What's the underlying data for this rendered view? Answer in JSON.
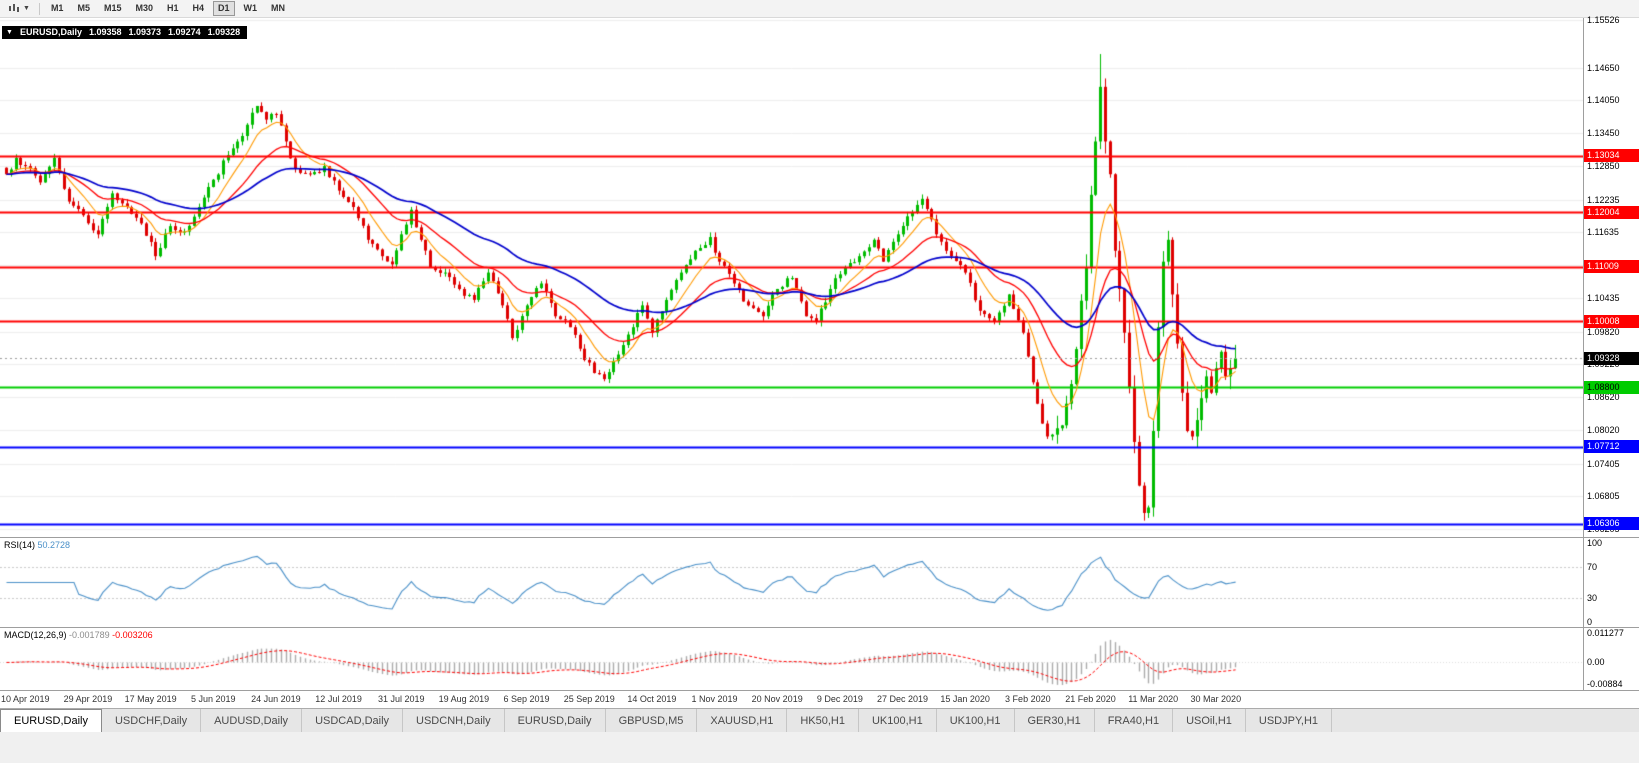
{
  "toolbar": {
    "timeframes": [
      {
        "label": "M1",
        "active": false
      },
      {
        "label": "M5",
        "active": false
      },
      {
        "label": "M15",
        "active": false
      },
      {
        "label": "M30",
        "active": false
      },
      {
        "label": "H1",
        "active": false
      },
      {
        "label": "H4",
        "active": false
      },
      {
        "label": "D1",
        "active": true
      },
      {
        "label": "W1",
        "active": false
      },
      {
        "label": "MN",
        "active": false
      }
    ]
  },
  "chart": {
    "header": {
      "symbol": "EURUSD,Daily",
      "open": "1.09358",
      "high": "1.09373",
      "low": "1.09274",
      "close": "1.09328"
    },
    "price_axis_ticks": [
      "1.15526",
      "1.14650",
      "1.14050",
      "1.13450",
      "1.12850",
      "1.12235",
      "1.11635",
      "1.11035",
      "1.10435",
      "1.09820",
      "1.09220",
      "1.08620",
      "1.08020",
      "1.07405",
      "1.06805",
      "1.06205"
    ],
    "levels": [
      {
        "price": 1.13034,
        "label": "1.13034",
        "color": "#FF0000",
        "text": "#FFFFFF"
      },
      {
        "price": 1.12004,
        "label": "1.12004",
        "color": "#FF0000",
        "text": "#FFFFFF"
      },
      {
        "price": 1.11009,
        "label": "1.11009",
        "color": "#FF0000",
        "text": "#FFFFFF"
      },
      {
        "price": 1.10008,
        "label": "1.10008",
        "color": "#FF0000",
        "text": "#FFFFFF"
      },
      {
        "price": 1.088,
        "label": "1.08800",
        "color": "#00CC00",
        "text": "#000000"
      },
      {
        "price": 1.07712,
        "label": "1.07712",
        "color": "#0000FF",
        "text": "#FFFFFF"
      },
      {
        "price": 1.06306,
        "label": "1.06306",
        "color": "#0000FF",
        "text": "#FFFFFF"
      }
    ],
    "current_price": {
      "value": 1.09328,
      "label": "1.09328"
    },
    "colors": {
      "bull": "#00BB00",
      "bear": "#DE0000",
      "background": "#FFFFFF",
      "grid": "#EDEDED",
      "bid_line": "#9C9C9C"
    },
    "chart_data": {
      "type": "candlestick",
      "symbol": "EURUSD",
      "timeframe": "Daily",
      "price_range_top": 1.1556,
      "price_range_bottom": 1.0606,
      "bars": 256,
      "seed": 7,
      "base_noise": 0.0016,
      "volatile_noise": 0.0045,
      "volatile_from_bar": 218,
      "spike_high": {
        "bar": 227,
        "high": 1.149
      },
      "crash_low": {
        "bar": 236,
        "low": 1.0636
      },
      "close_waypoints": [
        [
          0,
          1.127
        ],
        [
          2,
          1.13
        ],
        [
          4,
          1.1285
        ],
        [
          7,
          1.1255
        ],
        [
          10,
          1.13
        ],
        [
          13,
          1.122
        ],
        [
          16,
          1.1195
        ],
        [
          19,
          1.116
        ],
        [
          22,
          1.1235
        ],
        [
          25,
          1.121
        ],
        [
          28,
          1.118
        ],
        [
          31,
          1.112
        ],
        [
          34,
          1.1175
        ],
        [
          37,
          1.1165
        ],
        [
          40,
          1.121
        ],
        [
          43,
          1.126
        ],
        [
          46,
          1.1305
        ],
        [
          49,
          1.134
        ],
        [
          52,
          1.1395
        ],
        [
          54,
          1.137
        ],
        [
          56,
          1.138
        ],
        [
          58,
          1.133
        ],
        [
          60,
          1.128
        ],
        [
          63,
          1.127
        ],
        [
          66,
          1.1285
        ],
        [
          69,
          1.124
        ],
        [
          72,
          1.121
        ],
        [
          75,
          1.115
        ],
        [
          78,
          1.112
        ],
        [
          80,
          1.1105
        ],
        [
          82,
          1.116
        ],
        [
          84,
          1.1205
        ],
        [
          86,
          1.115
        ],
        [
          88,
          1.11
        ],
        [
          91,
          1.109
        ],
        [
          94,
          1.106
        ],
        [
          97,
          1.104
        ],
        [
          100,
          1.109
        ],
        [
          103,
          1.103
        ],
        [
          105,
          1.097
        ],
        [
          108,
          1.103
        ],
        [
          111,
          1.107
        ],
        [
          114,
          1.101
        ],
        [
          117,
          1.099
        ],
        [
          120,
          1.093
        ],
        [
          124,
          1.0895
        ],
        [
          127,
          1.094
        ],
        [
          130,
          1.099
        ],
        [
          132,
          1.103
        ],
        [
          134,
          1.098
        ],
        [
          137,
          1.104
        ],
        [
          140,
          1.109
        ],
        [
          143,
          1.113
        ],
        [
          146,
          1.1155
        ],
        [
          148,
          1.111
        ],
        [
          151,
          1.107
        ],
        [
          154,
          1.103
        ],
        [
          157,
          1.101
        ],
        [
          160,
          1.106
        ],
        [
          163,
          1.108
        ],
        [
          166,
          1.101
        ],
        [
          168,
          1.1
        ],
        [
          171,
          1.106
        ],
        [
          174,
          1.11
        ],
        [
          177,
          1.112
        ],
        [
          180,
          1.115
        ],
        [
          182,
          1.111
        ],
        [
          185,
          1.116
        ],
        [
          188,
          1.12
        ],
        [
          190,
          1.1225
        ],
        [
          193,
          1.116
        ],
        [
          196,
          1.112
        ],
        [
          199,
          1.109
        ],
        [
          202,
          1.102
        ],
        [
          205,
          1.1
        ],
        [
          208,
          1.105
        ],
        [
          211,
          1.098
        ],
        [
          214,
          1.085
        ],
        [
          216,
          1.079
        ],
        [
          218,
          1.0805
        ],
        [
          220,
          1.085
        ],
        [
          222,
          1.095
        ],
        [
          224,
          1.11
        ],
        [
          226,
          1.133
        ],
        [
          227,
          1.143
        ],
        [
          228,
          1.133
        ],
        [
          229,
          1.127
        ],
        [
          230,
          1.113
        ],
        [
          231,
          1.106
        ],
        [
          232,
          1.098
        ],
        [
          233,
          1.088
        ],
        [
          234,
          1.078
        ],
        [
          235,
          1.07
        ],
        [
          236,
          1.065
        ],
        [
          237,
          1.066
        ],
        [
          238,
          1.08
        ],
        [
          239,
          1.099
        ],
        [
          240,
          1.111
        ],
        [
          241,
          1.115
        ],
        [
          242,
          1.105
        ],
        [
          243,
          1.096
        ],
        [
          244,
          1.087
        ],
        [
          245,
          1.08
        ],
        [
          246,
          1.079
        ],
        [
          247,
          1.082
        ],
        [
          248,
          1.086
        ],
        [
          249,
          1.09
        ],
        [
          250,
          1.087
        ],
        [
          251,
          1.0915
        ],
        [
          252,
          1.0945
        ],
        [
          253,
          1.09
        ],
        [
          254,
          1.0915
        ],
        [
          255,
          1.0933
        ]
      ],
      "moving_averages": [
        {
          "period": 8,
          "color": "#FF9900"
        },
        {
          "period": 20,
          "color": "#FF0000"
        },
        {
          "period": 45,
          "color": "#0000CC"
        }
      ]
    }
  },
  "rsi": {
    "title": "RSI(14)",
    "value": "50.2728",
    "period": 14,
    "axis_ticks": [
      "100",
      "70",
      "30",
      "0"
    ],
    "levels": [
      70,
      30
    ],
    "color": "#4A90C8",
    "range": [
      0,
      100
    ]
  },
  "macd": {
    "title": "MACD(12,26,9)",
    "macd_value": "-0.001789",
    "signal_value": "-0.003206",
    "fast": 12,
    "slow": 26,
    "signal": 9,
    "axis_ticks": [
      "0.011277",
      "0.00",
      "-0.00884"
    ],
    "hist_color": "#ABABAB",
    "signal_color": "#FF0000",
    "range": [
      0.0113,
      -0.0089
    ]
  },
  "date_axis": {
    "labels": [
      "10 Apr 2019",
      "29 Apr 2019",
      "17 May 2019",
      "5 Jun 2019",
      "24 Jun 2019",
      "12 Jul 2019",
      "31 Jul 2019",
      "19 Aug 2019",
      "6 Sep 2019",
      "25 Sep 2019",
      "14 Oct 2019",
      "1 Nov 2019",
      "20 Nov 2019",
      "9 Dec 2019",
      "27 Dec 2019",
      "15 Jan 2020",
      "3 Feb 2020",
      "21 Feb 2020",
      "11 Mar 2020",
      "30 Mar 2020"
    ]
  },
  "tabs": [
    {
      "label": "EURUSD,Daily",
      "active": true
    },
    {
      "label": "USDCHF,Daily",
      "active": false
    },
    {
      "label": "AUDUSD,Daily",
      "active": false
    },
    {
      "label": "USDCAD,Daily",
      "active": false
    },
    {
      "label": "USDCNH,Daily",
      "active": false
    },
    {
      "label": "EURUSD,Daily",
      "active": false
    },
    {
      "label": "GBPUSD,M5",
      "active": false
    },
    {
      "label": "XAUUSD,H1",
      "active": false
    },
    {
      "label": "HK50,H1",
      "active": false
    },
    {
      "label": "UK100,H1",
      "active": false
    },
    {
      "label": "UK100,H1",
      "active": false
    },
    {
      "label": "GER30,H1",
      "active": false
    },
    {
      "label": "FRA40,H1",
      "active": false
    },
    {
      "label": "USOil,H1",
      "active": false
    },
    {
      "label": "USDJPY,H1",
      "active": false
    }
  ]
}
